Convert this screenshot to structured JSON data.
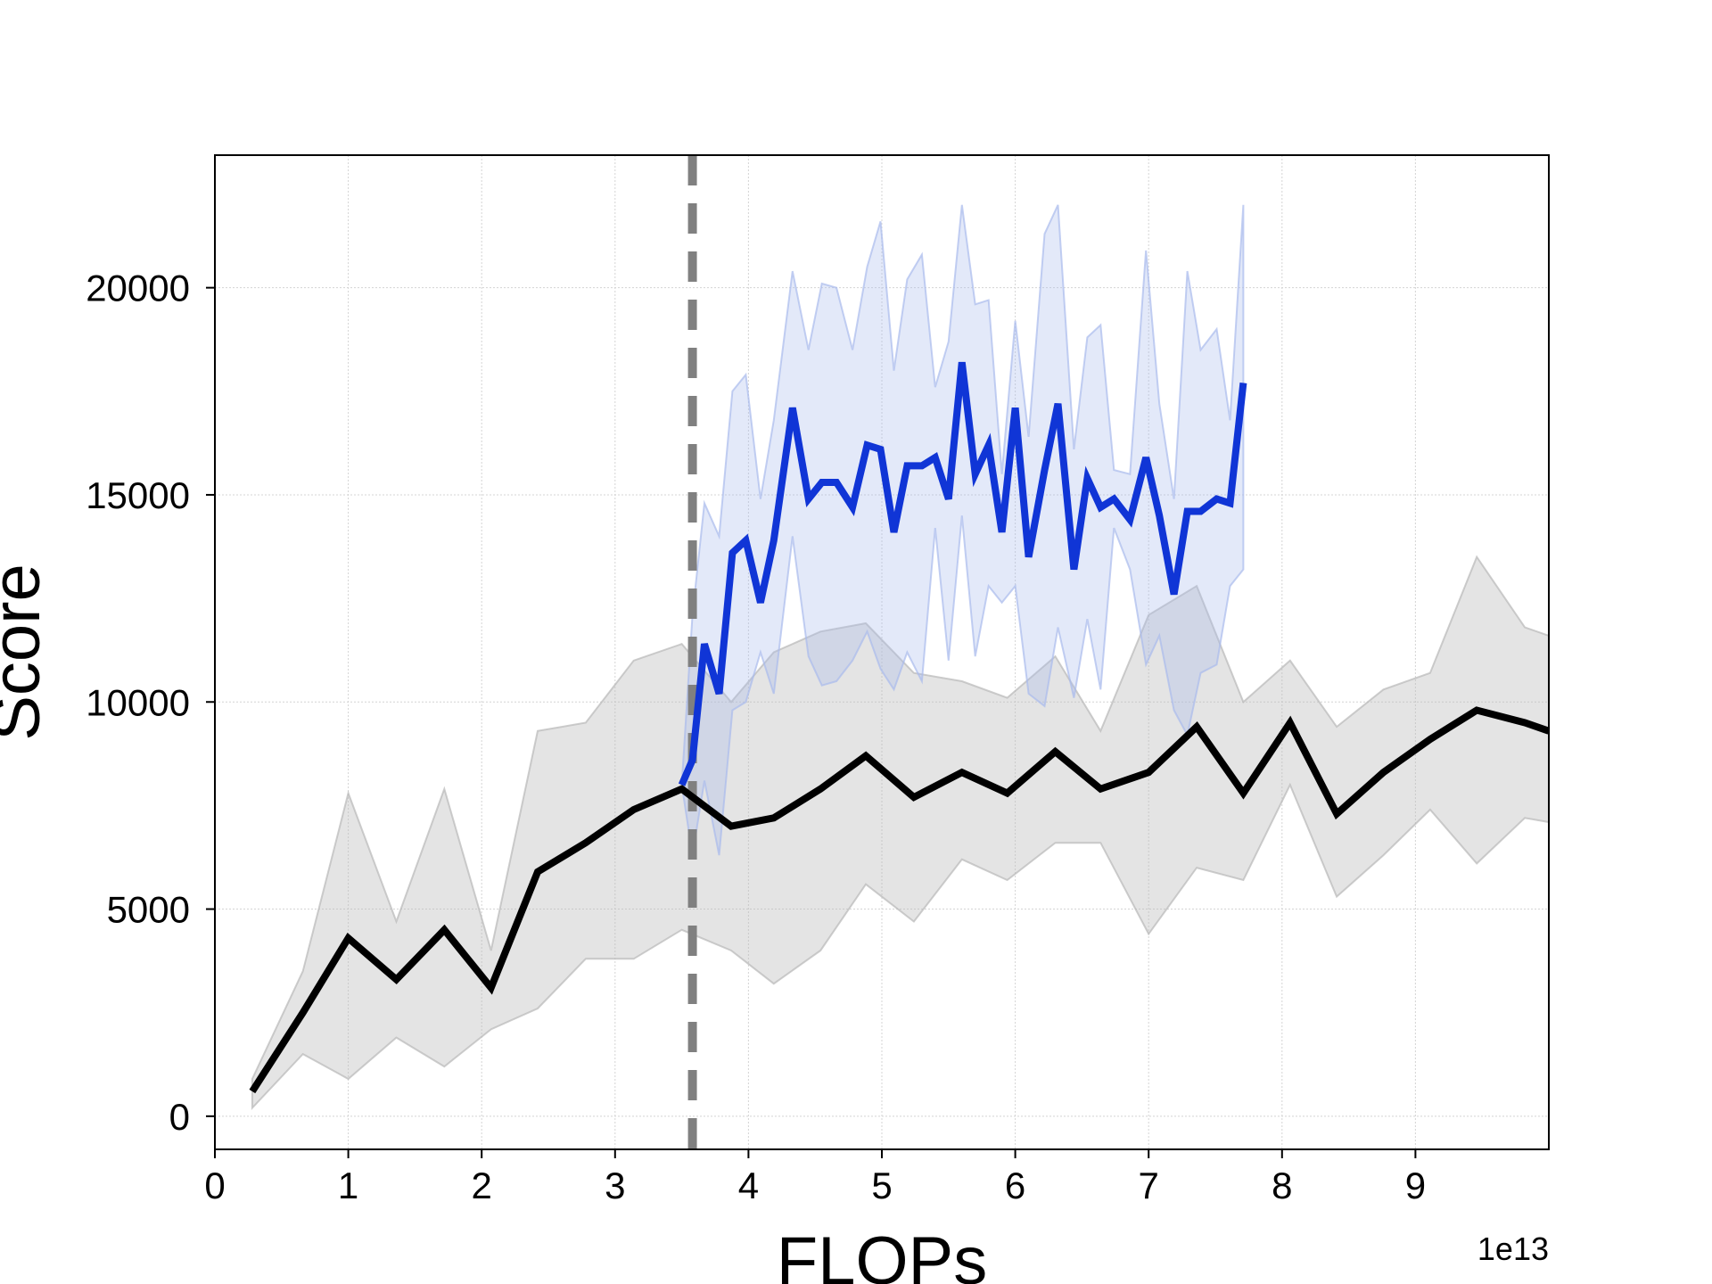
{
  "chart_data": {
    "type": "line",
    "xlabel": "FLOPs",
    "ylabel": "Score",
    "x_offset_label": "1e13",
    "xlim": [
      0,
      10
    ],
    "ylim": [
      -800,
      23200
    ],
    "x_ticks": [
      0,
      1,
      2,
      3,
      4,
      5,
      6,
      7,
      8,
      9
    ],
    "y_ticks": [
      0,
      5000,
      10000,
      15000,
      20000
    ],
    "x_tick_labels": [
      "0",
      "1",
      "2",
      "3",
      "4",
      "5",
      "6",
      "7",
      "8",
      "9"
    ],
    "y_tick_labels": [
      "0",
      "5000",
      "10000",
      "15000",
      "20000"
    ],
    "grid": true,
    "vline": {
      "x": 3.58,
      "style": "dashed",
      "color": "#808080"
    },
    "series": [
      {
        "color": "#000000",
        "band_color": "#b8b8b8",
        "x": [
          0.28,
          0.66,
          1.0,
          1.36,
          1.72,
          2.07,
          2.42,
          2.78,
          3.14,
          3.5,
          3.87,
          4.19,
          4.54,
          4.88,
          5.24,
          5.6,
          5.94,
          6.3,
          6.64,
          7.0,
          7.36,
          7.71,
          8.06,
          8.41,
          8.76,
          9.11,
          9.46,
          9.82,
          10.0
        ],
        "values": [
          600,
          2500,
          4300,
          3300,
          4500,
          3100,
          5900,
          6600,
          7400,
          7900,
          7000,
          7200,
          7900,
          8700,
          7700,
          8300,
          7800,
          8800,
          7900,
          8300,
          9400,
          7800,
          9500,
          7300,
          8300,
          9100,
          9800,
          9500,
          9300
        ],
        "lower": [
          200,
          1500,
          900,
          1900,
          1200,
          2100,
          2600,
          3800,
          3800,
          4500,
          4000,
          3200,
          4000,
          5600,
          4700,
          6200,
          5700,
          6600,
          6600,
          4400,
          6000,
          5700,
          8000,
          5300,
          6300,
          7400,
          6100,
          7200,
          7100
        ],
        "upper": [
          900,
          3500,
          7800,
          4700,
          7900,
          4000,
          9300,
          9500,
          11000,
          11400,
          10000,
          11200,
          11700,
          11900,
          10700,
          10500,
          10100,
          11100,
          9300,
          12100,
          12800,
          10000,
          11000,
          9400,
          10300,
          10700,
          13500,
          11800,
          11600
        ]
      },
      {
        "color": "#1035d6",
        "band_color": "#a9bbec",
        "x": [
          3.5,
          3.58,
          3.67,
          3.78,
          3.88,
          3.98,
          4.09,
          4.19,
          4.33,
          4.45,
          4.55,
          4.66,
          4.78,
          4.89,
          4.99,
          5.09,
          5.19,
          5.3,
          5.4,
          5.5,
          5.6,
          5.7,
          5.8,
          5.9,
          6.0,
          6.1,
          6.22,
          6.32,
          6.44,
          6.54,
          6.64,
          6.74,
          6.86,
          6.98,
          7.08,
          7.19,
          7.29,
          7.39,
          7.51,
          7.61,
          7.71
        ],
        "values": [
          8000,
          8600,
          11400,
          10200,
          13600,
          13900,
          12400,
          13900,
          17100,
          14900,
          15300,
          15300,
          14700,
          16200,
          16100,
          14100,
          15700,
          15700,
          15900,
          14900,
          18200,
          15500,
          16200,
          14100,
          17100,
          13500,
          15600,
          17200,
          13200,
          15400,
          14700,
          14900,
          14400,
          15900,
          14500,
          12600,
          14600,
          14600,
          14900,
          14800,
          17700
        ],
        "lower": [
          8000,
          6300,
          8100,
          6300,
          9800,
          10000,
          11200,
          10200,
          14000,
          11100,
          10400,
          10500,
          11000,
          11700,
          10800,
          10300,
          11200,
          10500,
          14200,
          11000,
          14500,
          11100,
          12800,
          12400,
          12800,
          10200,
          9900,
          11800,
          10100,
          12000,
          10300,
          14200,
          13200,
          10900,
          11600,
          9800,
          9200,
          10700,
          10900,
          12800,
          13200
        ],
        "upper": [
          8000,
          12100,
          14800,
          14000,
          17500,
          17900,
          14900,
          16800,
          20400,
          18500,
          20100,
          20000,
          18500,
          20500,
          21600,
          18000,
          20200,
          20800,
          17600,
          18700,
          22000,
          19600,
          19700,
          15500,
          19200,
          16400,
          21300,
          22000,
          16100,
          18800,
          19100,
          15600,
          15500,
          20900,
          17200,
          14900,
          20400,
          18500,
          19000,
          16800,
          22000
        ]
      }
    ]
  }
}
